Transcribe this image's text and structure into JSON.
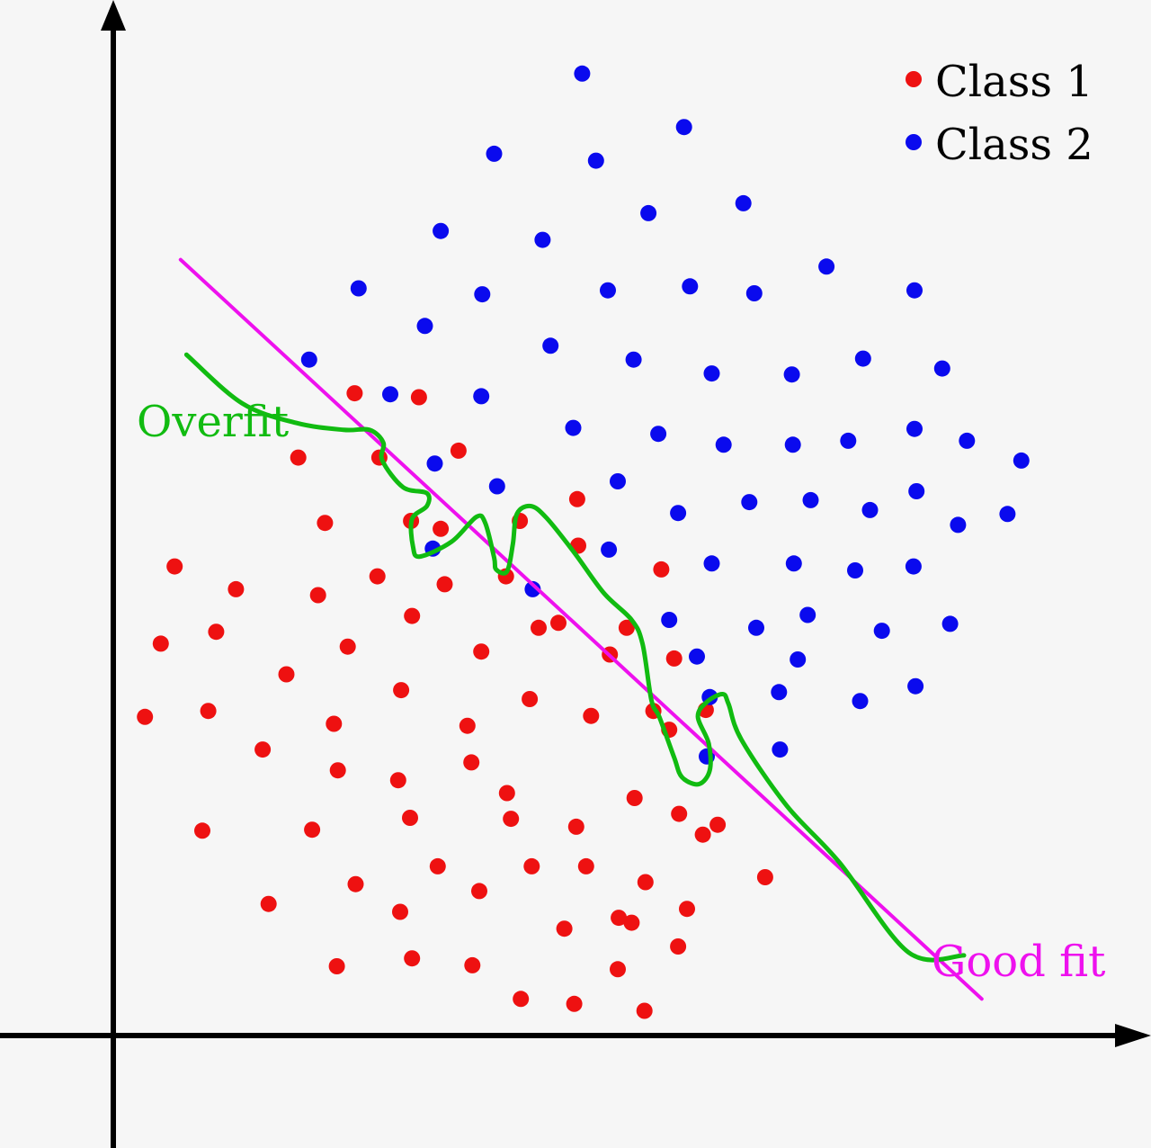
{
  "chart_data": {
    "type": "scatter",
    "title": "",
    "xlabel": "",
    "ylabel": "",
    "xlim": [
      0,
      1
    ],
    "ylim": [
      0,
      1
    ],
    "grid": false,
    "legend_position": "top-right",
    "series": [
      {
        "name": "Class 1",
        "color": "#ee1111",
        "points": [
          [
            0.244,
            0.649
          ],
          [
            0.309,
            0.645
          ],
          [
            0.187,
            0.584
          ],
          [
            0.269,
            0.584
          ],
          [
            0.349,
            0.591
          ],
          [
            0.301,
            0.52
          ],
          [
            0.411,
            0.52
          ],
          [
            0.469,
            0.542
          ],
          [
            0.214,
            0.518
          ],
          [
            0.331,
            0.512
          ],
          [
            0.062,
            0.474
          ],
          [
            0.124,
            0.451
          ],
          [
            0.267,
            0.464
          ],
          [
            0.335,
            0.456
          ],
          [
            0.397,
            0.464
          ],
          [
            0.47,
            0.495
          ],
          [
            0.554,
            0.471
          ],
          [
            0.207,
            0.445
          ],
          [
            0.45,
            0.417
          ],
          [
            0.302,
            0.424
          ],
          [
            0.519,
            0.412
          ],
          [
            0.048,
            0.396
          ],
          [
            0.104,
            0.408
          ],
          [
            0.237,
            0.393
          ],
          [
            0.372,
            0.388
          ],
          [
            0.43,
            0.412
          ],
          [
            0.502,
            0.385
          ],
          [
            0.567,
            0.381
          ],
          [
            0.175,
            0.365
          ],
          [
            0.291,
            0.349
          ],
          [
            0.421,
            0.34
          ],
          [
            0.483,
            0.323
          ],
          [
            0.546,
            0.328
          ],
          [
            0.599,
            0.329
          ],
          [
            0.032,
            0.322
          ],
          [
            0.096,
            0.328
          ],
          [
            0.223,
            0.315
          ],
          [
            0.358,
            0.313
          ],
          [
            0.562,
            0.309
          ],
          [
            0.151,
            0.289
          ],
          [
            0.227,
            0.268
          ],
          [
            0.362,
            0.276
          ],
          [
            0.288,
            0.258
          ],
          [
            0.398,
            0.245
          ],
          [
            0.527,
            0.24
          ],
          [
            0.572,
            0.224
          ],
          [
            0.611,
            0.213
          ],
          [
            0.09,
            0.207
          ],
          [
            0.201,
            0.208
          ],
          [
            0.3,
            0.22
          ],
          [
            0.402,
            0.219
          ],
          [
            0.468,
            0.211
          ],
          [
            0.596,
            0.203
          ],
          [
            0.328,
            0.171
          ],
          [
            0.423,
            0.171
          ],
          [
            0.478,
            0.171
          ],
          [
            0.538,
            0.155
          ],
          [
            0.659,
            0.16
          ],
          [
            0.245,
            0.153
          ],
          [
            0.37,
            0.146
          ],
          [
            0.58,
            0.128
          ],
          [
            0.157,
            0.133
          ],
          [
            0.29,
            0.125
          ],
          [
            0.524,
            0.114
          ],
          [
            0.302,
            0.078
          ],
          [
            0.456,
            0.108
          ],
          [
            0.511,
            0.119
          ],
          [
            0.571,
            0.09
          ],
          [
            0.226,
            0.07
          ],
          [
            0.363,
            0.071
          ],
          [
            0.51,
            0.067
          ],
          [
            0.412,
            0.037
          ],
          [
            0.466,
            0.032
          ],
          [
            0.537,
            0.025
          ]
        ]
      },
      {
        "name": "Class 2",
        "color": "#0a0aee",
        "points": [
          [
            0.474,
            0.972
          ],
          [
            0.577,
            0.918
          ],
          [
            0.385,
            0.891
          ],
          [
            0.488,
            0.884
          ],
          [
            0.541,
            0.831
          ],
          [
            0.637,
            0.841
          ],
          [
            0.331,
            0.813
          ],
          [
            0.434,
            0.804
          ],
          [
            0.248,
            0.755
          ],
          [
            0.373,
            0.749
          ],
          [
            0.5,
            0.753
          ],
          [
            0.583,
            0.757
          ],
          [
            0.648,
            0.75
          ],
          [
            0.721,
            0.777
          ],
          [
            0.81,
            0.753
          ],
          [
            0.315,
            0.717
          ],
          [
            0.442,
            0.697
          ],
          [
            0.198,
            0.683
          ],
          [
            0.526,
            0.683
          ],
          [
            0.605,
            0.669
          ],
          [
            0.686,
            0.668
          ],
          [
            0.758,
            0.684
          ],
          [
            0.838,
            0.674
          ],
          [
            0.28,
            0.648
          ],
          [
            0.372,
            0.646
          ],
          [
            0.465,
            0.614
          ],
          [
            0.551,
            0.608
          ],
          [
            0.617,
            0.597
          ],
          [
            0.687,
            0.597
          ],
          [
            0.743,
            0.601
          ],
          [
            0.81,
            0.613
          ],
          [
            0.863,
            0.601
          ],
          [
            0.918,
            0.581
          ],
          [
            0.325,
            0.578
          ],
          [
            0.388,
            0.555
          ],
          [
            0.51,
            0.56
          ],
          [
            0.571,
            0.528
          ],
          [
            0.643,
            0.539
          ],
          [
            0.705,
            0.541
          ],
          [
            0.765,
            0.531
          ],
          [
            0.812,
            0.55
          ],
          [
            0.854,
            0.516
          ],
          [
            0.904,
            0.527
          ],
          [
            0.323,
            0.492
          ],
          [
            0.501,
            0.491
          ],
          [
            0.605,
            0.477
          ],
          [
            0.688,
            0.477
          ],
          [
            0.75,
            0.47
          ],
          [
            0.809,
            0.474
          ],
          [
            0.424,
            0.451
          ],
          [
            0.562,
            0.42
          ],
          [
            0.65,
            0.412
          ],
          [
            0.702,
            0.425
          ],
          [
            0.777,
            0.409
          ],
          [
            0.846,
            0.416
          ],
          [
            0.59,
            0.383
          ],
          [
            0.692,
            0.38
          ],
          [
            0.811,
            0.353
          ],
          [
            0.603,
            0.342
          ],
          [
            0.673,
            0.347
          ],
          [
            0.755,
            0.338
          ],
          [
            0.674,
            0.289
          ],
          [
            0.6,
            0.282
          ]
        ]
      }
    ],
    "lines": [
      {
        "name": "Good fit",
        "color": "#ee11ee",
        "points": [
          [
            0.068,
            0.784
          ],
          [
            0.878,
            0.037
          ]
        ]
      },
      {
        "name": "Overfit",
        "color": "#11bb11",
        "points": [
          [
            0.074,
            0.688
          ],
          [
            0.13,
            0.639
          ],
          [
            0.185,
            0.619
          ],
          [
            0.233,
            0.612
          ],
          [
            0.259,
            0.612
          ],
          [
            0.273,
            0.599
          ],
          [
            0.272,
            0.581
          ],
          [
            0.293,
            0.554
          ],
          [
            0.317,
            0.548
          ],
          [
            0.317,
            0.535
          ],
          [
            0.302,
            0.522
          ],
          [
            0.303,
            0.494
          ],
          [
            0.31,
            0.484
          ],
          [
            0.342,
            0.499
          ],
          [
            0.367,
            0.524
          ],
          [
            0.376,
            0.518
          ],
          [
            0.385,
            0.483
          ],
          [
            0.387,
            0.471
          ],
          [
            0.398,
            0.469
          ],
          [
            0.404,
            0.497
          ],
          [
            0.408,
            0.527
          ],
          [
            0.422,
            0.535
          ],
          [
            0.438,
            0.523
          ],
          [
            0.466,
            0.488
          ],
          [
            0.496,
            0.447
          ],
          [
            0.524,
            0.42
          ],
          [
            0.535,
            0.396
          ],
          [
            0.544,
            0.339
          ],
          [
            0.552,
            0.322
          ],
          [
            0.567,
            0.281
          ],
          [
            0.575,
            0.261
          ],
          [
            0.592,
            0.254
          ],
          [
            0.603,
            0.268
          ],
          [
            0.602,
            0.295
          ],
          [
            0.591,
            0.322
          ],
          [
            0.6,
            0.337
          ],
          [
            0.616,
            0.345
          ],
          [
            0.622,
            0.335
          ],
          [
            0.635,
            0.299
          ],
          [
            0.681,
            0.232
          ],
          [
            0.734,
            0.175
          ],
          [
            0.804,
            0.084
          ],
          [
            0.86,
            0.081
          ]
        ]
      }
    ],
    "annotations": [
      {
        "text": "Overfit",
        "color": "#11bb11"
      },
      {
        "text": "Good fit",
        "color": "#ee11ee"
      }
    ]
  },
  "legend": {
    "items": [
      {
        "label": "Class 1",
        "color": "#ee1111"
      },
      {
        "label": "Class 2",
        "color": "#0a0aee"
      }
    ]
  },
  "labels": {
    "overfit": "Overfit",
    "good_fit": "Good fit"
  }
}
